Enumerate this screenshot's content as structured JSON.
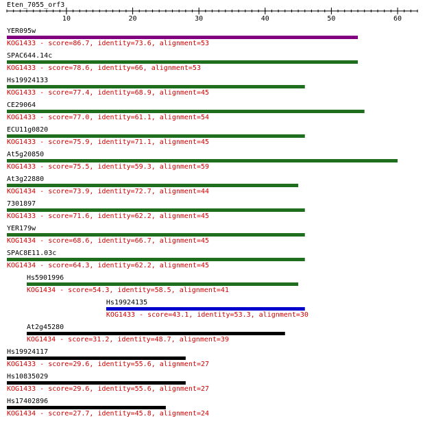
{
  "chart_data": {
    "type": "alignment",
    "title": "Eten_7055_orf3",
    "xlim": [
      1,
      63
    ],
    "xticks": [
      10,
      20,
      30,
      40,
      50,
      60
    ],
    "label_color": "#cc0000",
    "hits": [
      {
        "name": "YER095w",
        "start": 1,
        "end": 54,
        "color": "#800080",
        "label": "KOG1433 - score=86.7, identity=73.6, alignment=53"
      },
      {
        "name": "SPAC644.14c",
        "start": 1,
        "end": 54,
        "color": "#1e6e1e",
        "label": "KOG1433 - score=78.6, identity=66, alignment=53"
      },
      {
        "name": "Hs19924133",
        "start": 1,
        "end": 46,
        "color": "#1e6e1e",
        "label": "KOG1433 - score=77.4, identity=68.9, alignment=45"
      },
      {
        "name": "CE29064",
        "start": 1,
        "end": 55,
        "color": "#1e6e1e",
        "label": "KOG1433 - score=77.0, identity=61.1, alignment=54"
      },
      {
        "name": "ECU11g0820",
        "start": 1,
        "end": 46,
        "color": "#1e6e1e",
        "label": "KOG1433 - score=75.9, identity=71.1, alignment=45"
      },
      {
        "name": "At5g20850",
        "start": 1,
        "end": 60,
        "color": "#1e6e1e",
        "label": "KOG1433 - score=75.5, identity=59.3, alignment=59"
      },
      {
        "name": "At3g22880",
        "start": 1,
        "end": 45,
        "color": "#1e6e1e",
        "label": "KOG1434 - score=73.9, identity=72.7, alignment=44"
      },
      {
        "name": "7301897",
        "start": 1,
        "end": 46,
        "color": "#1e6e1e",
        "label": "KOG1433 - score=71.6, identity=62.2, alignment=45"
      },
      {
        "name": "YER179w",
        "start": 1,
        "end": 46,
        "color": "#1e6e1e",
        "label": "KOG1434 - score=68.6, identity=66.7, alignment=45"
      },
      {
        "name": "SPAC8E11.03c",
        "start": 1,
        "end": 46,
        "color": "#1e6e1e",
        "label": "KOG1434 - score=64.3, identity=62.2, alignment=45"
      },
      {
        "name": "Hs5901996",
        "start": 4,
        "end": 45,
        "color": "#1e6e1e",
        "label": "KOG1434 - score=54.3, identity=58.5, alignment=41"
      },
      {
        "name": "Hs19924135",
        "start": 16,
        "end": 46,
        "color": "#0000cc",
        "label": "KOG1433 - score=43.1, identity=53.3, alignment=30"
      },
      {
        "name": "At2g45280",
        "start": 4,
        "end": 43,
        "color": "#000000",
        "label": "KOG1434 - score=31.2, identity=48.7, alignment=39"
      },
      {
        "name": "Hs19924117",
        "start": 1,
        "end": 28,
        "color": "#000000",
        "label": "KOG1433 - score=29.6, identity=55.6, alignment=27"
      },
      {
        "name": "Hs10835029",
        "start": 1,
        "end": 28,
        "color": "#000000",
        "label": "KOG1433 - score=29.6, identity=55.6, alignment=27"
      },
      {
        "name": "Hs17402896",
        "start": 1,
        "end": 25,
        "color": "#000000",
        "label": "KOG1434 - score=27.7, identity=45.8, alignment=24"
      }
    ]
  }
}
